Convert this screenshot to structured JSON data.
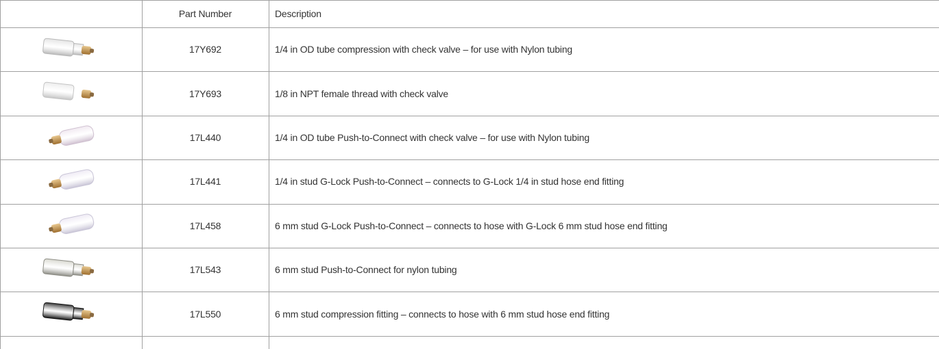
{
  "table": {
    "header": [
      "Part Number",
      "Description"
    ],
    "rows": [
      [
        "17Y692",
        "1/4 in OD tube compression with check valve – for use with Nylon tubing"
      ],
      [
        "17Y693",
        "1/8 in NPT female thread with check valve"
      ],
      [
        "17L440",
        "1/4 in OD tube Push-to-Connect with check valve – for use with Nylon tubing"
      ],
      [
        "17L441",
        "1/4 in stud G-Lock Push-to-Connect – connects to G-Lock 1/4 in stud hose end fitting"
      ],
      [
        "17L458",
        "6 mm stud G-Lock Push-to-Connect – connects to hose with G-Lock 6 mm stud hose end fitting"
      ],
      [
        "17L543",
        "6 mm stud Push-to-Connect for nylon tubing"
      ],
      [
        "17L550",
        "6 mm stud compression fitting – connects to hose with 6 mm stud hose end fitting"
      ]
    ]
  }
}
